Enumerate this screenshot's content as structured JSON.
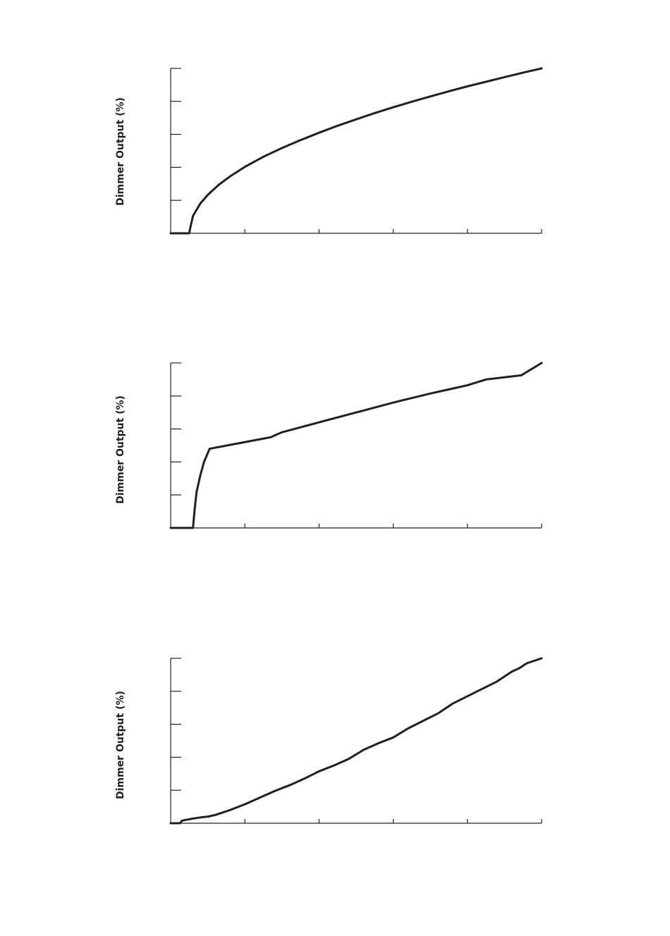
{
  "chart_data": [
    {
      "type": "line",
      "title": "",
      "xlabel": "",
      "ylabel": "Dimmer Output (%)",
      "xlim": [
        0,
        100
      ],
      "ylim": [
        0,
        100
      ],
      "x_ticks": [
        0,
        20,
        40,
        60,
        80,
        100
      ],
      "y_ticks": [
        0,
        20,
        40,
        60,
        80,
        100
      ],
      "grid": false,
      "series": [
        {
          "x": [
            0,
            5,
            5.3,
            6,
            8,
            10,
            13,
            16,
            20,
            25,
            30,
            35,
            40,
            45,
            50,
            55,
            60,
            65,
            70,
            75,
            80,
            85,
            90,
            95,
            100
          ],
          "values": [
            0,
            0,
            3.5,
            10.5,
            18.1,
            23.3,
            29.5,
            34.5,
            40.3,
            46.4,
            51.7,
            56.5,
            61.0,
            65.2,
            69.1,
            72.9,
            76.4,
            79.8,
            83.0,
            86.1,
            89.1,
            91.9,
            94.7,
            97.4,
            100
          ]
        }
      ]
    },
    {
      "type": "line",
      "title": "",
      "xlabel": "",
      "ylabel": "Dimmer Output (%)",
      "xlim": [
        0,
        100
      ],
      "ylim": [
        0,
        100
      ],
      "x_ticks": [
        0,
        20,
        40,
        60,
        80,
        100
      ],
      "y_ticks": [
        0,
        20,
        40,
        60,
        80,
        100
      ],
      "grid": false,
      "series": [
        {
          "x": [
            0,
            6,
            6.5,
            7,
            8,
            9,
            10.5,
            27,
            30,
            40,
            50,
            60,
            70,
            80,
            85,
            94.5,
            100
          ],
          "values": [
            0,
            0,
            12,
            22,
            32,
            40,
            48,
            55,
            58,
            64,
            70,
            76,
            81.5,
            86.5,
            90,
            92.5,
            100
          ]
        }
      ]
    },
    {
      "type": "line",
      "title": "",
      "xlabel": "",
      "ylabel": "Dimmer Output (%)",
      "xlim": [
        0,
        100
      ],
      "ylim": [
        0,
        100
      ],
      "x_ticks": [
        0,
        20,
        40,
        60,
        80,
        100
      ],
      "y_ticks": [
        0,
        20,
        40,
        60,
        80,
        100
      ],
      "grid": false,
      "series": [
        {
          "x": [
            0,
            2.5,
            3,
            4,
            6,
            8,
            10,
            12,
            16,
            20,
            24,
            28,
            32,
            36,
            40,
            44,
            48,
            52,
            56,
            60,
            64,
            68,
            72,
            76,
            80,
            84,
            88,
            92,
            94,
            96,
            98,
            100
          ],
          "values": [
            0,
            0,
            1.5,
            2,
            2.8,
            3.5,
            4,
            5,
            8,
            11.5,
            15.5,
            19.5,
            23,
            27,
            31.5,
            35,
            39,
            44.5,
            48.5,
            52,
            57.5,
            62,
            66.5,
            72.5,
            77,
            81.5,
            86,
            92,
            94,
            97,
            98.5,
            100
          ]
        }
      ]
    }
  ]
}
